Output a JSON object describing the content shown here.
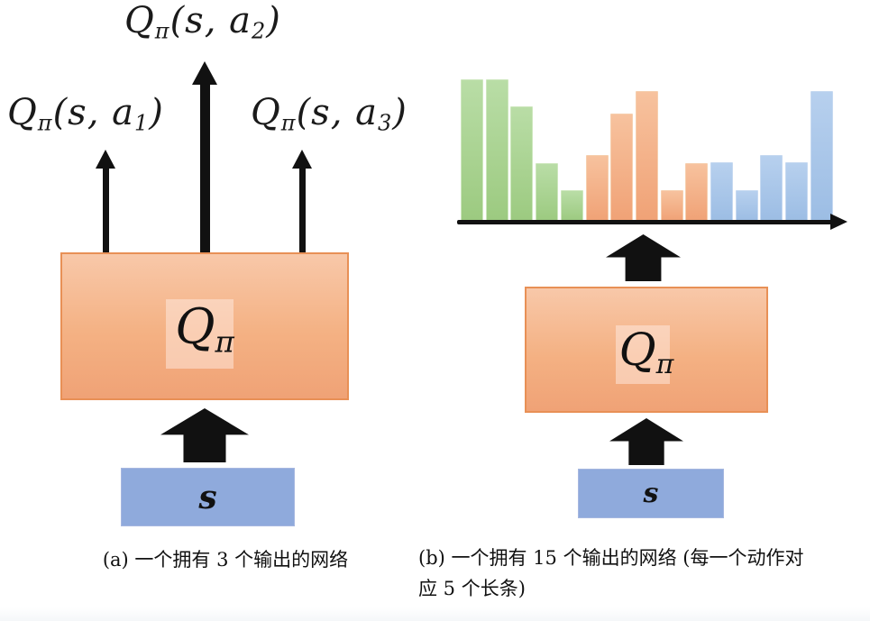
{
  "panel_a": {
    "caption": "(a) 一个拥有 3 个输出的网络",
    "output_labels": [
      {
        "q": "Q",
        "pi": "π",
        "open": "(s, a",
        "index": "1",
        "close": ")"
      },
      {
        "q": "Q",
        "pi": "π",
        "open": "(s, a",
        "index": "2",
        "close": ")"
      },
      {
        "q": "Q",
        "pi": "π",
        "open": "(s, a",
        "index": "3",
        "close": ")"
      }
    ],
    "box_label": {
      "main": "Q",
      "sub": "π"
    },
    "state_label": "s"
  },
  "panel_b": {
    "caption_line1": "(b) 一个拥有 15 个输出的网络 (每一个动作对",
    "caption_line2": "应 5 个长条)",
    "box_label": {
      "main": "Q",
      "sub": "π"
    },
    "state_label": "s"
  },
  "colors": {
    "network_box_fill": "#f4b183",
    "network_box_border": "#e89056",
    "state_box_fill": "#8faadc",
    "arrow_black": "#111111",
    "axis_black": "#111111"
  },
  "chart_data": {
    "type": "bar",
    "title": "",
    "xlabel": "",
    "ylabel": "",
    "description": "15 output bars of the Q network; 5 bars per action (green, orange, blue groups)",
    "categories": [
      "action 1",
      "action 2",
      "action 3"
    ],
    "bars_per_group": 5,
    "ylim": [
      0,
      1
    ],
    "grid": "off",
    "legend": "none",
    "x_axis_style": "black arrow pointing right, no ticks",
    "groups": [
      {
        "name": "action-1-green",
        "color": "#9cca80",
        "color_light": "#b9dda6",
        "border": "#cde7bd",
        "values": [
          1.0,
          1.0,
          0.81,
          0.41,
          0.22
        ]
      },
      {
        "name": "action-2-orange",
        "color": "#f0a276",
        "color_light": "#f7c29e",
        "border": "#f6cfae",
        "values": [
          0.47,
          0.76,
          0.92,
          0.22,
          0.41
        ]
      },
      {
        "name": "action-3-blue",
        "color": "#9cbde4",
        "color_light": "#b7d0ee",
        "border": "#c6d9f1",
        "values": [
          0.42,
          0.22,
          0.47,
          0.42,
          0.92
        ]
      }
    ]
  }
}
